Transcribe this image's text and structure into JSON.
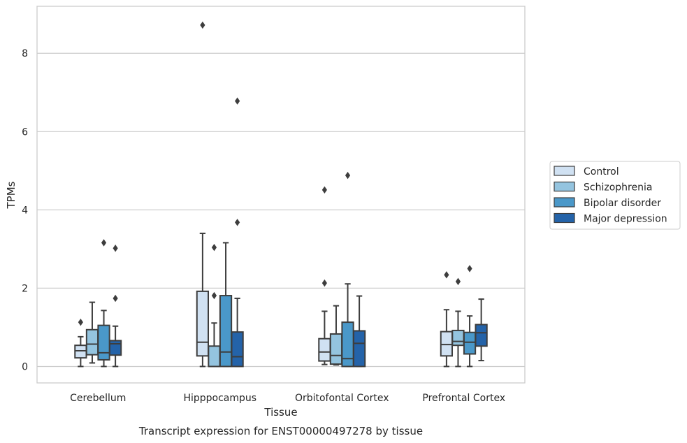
{
  "chart_data": {
    "type": "box",
    "title": "",
    "caption": "Transcript expression for ENST00000497278 by tissue",
    "xlabel": "Tissue",
    "ylabel": "TPMs",
    "ylim": [
      -0.42,
      9.2
    ],
    "yticks": [
      0,
      2,
      4,
      6,
      8
    ],
    "grid": "horizontal",
    "legend_position": "right",
    "categories": [
      "Cerebellum",
      "Hipppocampus",
      "Orbitofontal Cortex",
      "Prefrontal Cortex"
    ],
    "series": [
      {
        "name": "Control",
        "color": "#d0e1f2",
        "boxes": [
          {
            "whisker_low": 0.0,
            "q1": 0.22,
            "median": 0.4,
            "q3": 0.54,
            "whisker_high": 0.76,
            "outliers": [
              1.13
            ]
          },
          {
            "whisker_low": 0.0,
            "q1": 0.27,
            "median": 0.62,
            "q3": 1.92,
            "whisker_high": 3.4,
            "outliers": [
              8.72
            ]
          },
          {
            "whisker_low": 0.05,
            "q1": 0.14,
            "median": 0.37,
            "q3": 0.71,
            "whisker_high": 1.41,
            "outliers": [
              2.13,
              4.51
            ]
          },
          {
            "whisker_low": 0.0,
            "q1": 0.27,
            "median": 0.56,
            "q3": 0.89,
            "whisker_high": 1.45,
            "outliers": [
              2.34
            ]
          }
        ]
      },
      {
        "name": "Schizophrenia",
        "color": "#94c4df",
        "boxes": [
          {
            "whisker_low": 0.09,
            "q1": 0.3,
            "median": 0.57,
            "q3": 0.94,
            "whisker_high": 1.64,
            "outliers": []
          },
          {
            "whisker_low": 0.0,
            "q1": 0.0,
            "median": 0.0,
            "q3": 0.52,
            "whisker_high": 1.11,
            "outliers": [
              1.81,
              3.04
            ]
          },
          {
            "whisker_low": 0.04,
            "q1": 0.06,
            "median": 0.28,
            "q3": 0.83,
            "whisker_high": 1.55,
            "outliers": []
          },
          {
            "whisker_low": 0.0,
            "q1": 0.54,
            "median": 0.64,
            "q3": 0.92,
            "whisker_high": 1.41,
            "outliers": [
              2.17
            ]
          }
        ]
      },
      {
        "name": "Bipolar disorder",
        "color": "#4a98c9",
        "boxes": [
          {
            "whisker_low": 0.0,
            "q1": 0.17,
            "median": 0.35,
            "q3": 1.05,
            "whisker_high": 1.43,
            "outliers": [
              3.16
            ]
          },
          {
            "whisker_low": 0.0,
            "q1": 0.0,
            "median": 0.37,
            "q3": 1.81,
            "whisker_high": 3.16,
            "outliers": []
          },
          {
            "whisker_low": 0.0,
            "q1": 0.0,
            "median": 0.2,
            "q3": 1.13,
            "whisker_high": 2.11,
            "outliers": [
              4.88
            ]
          },
          {
            "whisker_low": 0.0,
            "q1": 0.32,
            "median": 0.62,
            "q3": 0.87,
            "whisker_high": 1.29,
            "outliers": [
              2.5
            ]
          }
        ]
      },
      {
        "name": "Major depression",
        "color": "#2463a9",
        "boxes": [
          {
            "whisker_low": 0.0,
            "q1": 0.29,
            "median": 0.58,
            "q3": 0.66,
            "whisker_high": 1.03,
            "outliers": [
              1.74,
              3.02
            ]
          },
          {
            "whisker_low": 0.0,
            "q1": 0.0,
            "median": 0.25,
            "q3": 0.88,
            "whisker_high": 1.74,
            "outliers": [
              3.68,
              6.78
            ]
          },
          {
            "whisker_low": 0.0,
            "q1": 0.0,
            "median": 0.59,
            "q3": 0.91,
            "whisker_high": 1.8,
            "outliers": []
          },
          {
            "whisker_low": 0.15,
            "q1": 0.52,
            "median": 0.86,
            "q3": 1.07,
            "whisker_high": 1.72,
            "outliers": []
          }
        ]
      }
    ]
  }
}
